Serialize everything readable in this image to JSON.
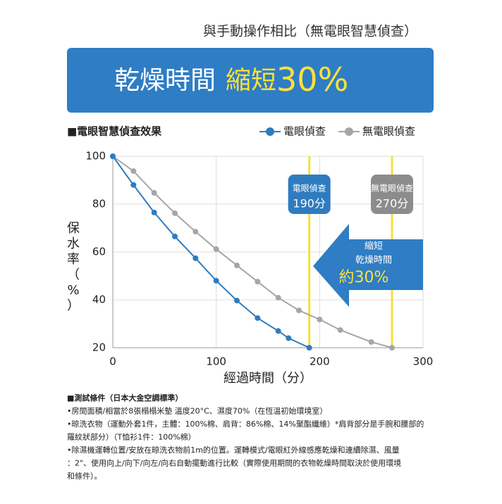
{
  "header": "與手動操作相比（無電眼智慧偵查）",
  "banner": {
    "lead": "乾燥時間",
    "highlight": "縮短",
    "figure": "30%"
  },
  "chart_data": {
    "type": "line",
    "title": "■電眼智慧偵查效果",
    "x_label": "經過時間（分）",
    "y_label": "保水率（%）",
    "xlim": [
      0,
      300
    ],
    "ylim": [
      20,
      100
    ],
    "xticks": [
      0,
      100,
      200,
      300
    ],
    "yticks": [
      20,
      40,
      60,
      80,
      100
    ],
    "grid": true,
    "series": [
      {
        "name": "電眼偵查",
        "color": "#2e7cbf",
        "x": [
          0,
          20,
          40,
          60,
          80,
          100,
          120,
          140,
          160,
          170,
          190
        ],
        "values": [
          100,
          88,
          76.5,
          66.5,
          57.4,
          48,
          39.7,
          32.4,
          27,
          24,
          20
        ]
      },
      {
        "name": "無電眼偵查",
        "color": "#a6a6a6",
        "x": [
          0,
          20,
          40,
          60,
          80,
          100,
          120,
          140,
          160,
          180,
          200,
          220,
          250,
          270
        ],
        "values": [
          100,
          93.8,
          84.7,
          76.2,
          68.5,
          61.2,
          54.4,
          47.6,
          40.9,
          35.6,
          31.8,
          27.4,
          22.4,
          20
        ]
      }
    ],
    "annotations": [
      {
        "x": 190,
        "title": "電眼偵查",
        "label": "190分",
        "color": "#2e7cbf"
      },
      {
        "x": 270,
        "title": "無電眼偵查",
        "label": "270分",
        "color": "#8c8c8c"
      }
    ],
    "callout": {
      "lines": [
        "縮短",
        "乾燥時間"
      ],
      "figure": "約30%"
    }
  },
  "notes": [
    "■測試條件（日本大金空調標準）",
    "•房間面積/相當於8張榻榻米墊 溫度20°C、濕度70%（在恆溫初始環境室）",
    "•晾洗衣物（運動外套1件，主體：100%棉、肩背：86%棉、14%聚酯纖維）*肩背部分是手腕和腰部的",
    "羅紋狀部分）（T恤衫1件：100%棉）",
    "•除濕機運轉位置/安放在晾洗衣物前1m的位置。運轉模式/電眼紅外線感應乾燥和連續除濕、風量",
    "：2\"、使用向上/向下/向左/向右自動擺動進行比較（實際使用期間的衣物乾燥時間取決於使用環境",
    "和條件）。"
  ]
}
